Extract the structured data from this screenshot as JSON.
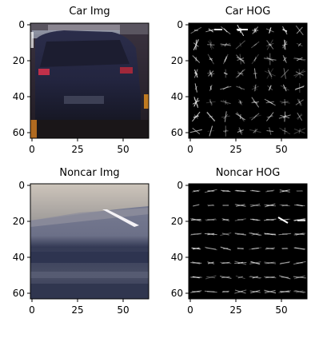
{
  "panels": [
    {
      "title": "Car Img",
      "kind": "car-image",
      "yticks": [
        "0",
        "20",
        "40",
        "60"
      ],
      "xticks": [
        "0",
        "25",
        "50"
      ]
    },
    {
      "title": "Car HOG",
      "kind": "car-hog",
      "yticks": [
        "0",
        "20",
        "40",
        "60"
      ],
      "xticks": [
        "0",
        "25",
        "50"
      ]
    },
    {
      "title": "Noncar Img",
      "kind": "noncar-image",
      "yticks": [
        "0",
        "20",
        "40",
        "60"
      ],
      "xticks": [
        "0",
        "25",
        "50"
      ]
    },
    {
      "title": "Noncar HOG",
      "kind": "noncar-hog",
      "yticks": [
        "0",
        "20",
        "40",
        "60"
      ],
      "xticks": [
        "0",
        "25",
        "50"
      ]
    }
  ],
  "colors": {
    "axis": "#000000",
    "text": "#000000",
    "hog_background": "#000000",
    "hog_stroke": "#ffffff"
  }
}
